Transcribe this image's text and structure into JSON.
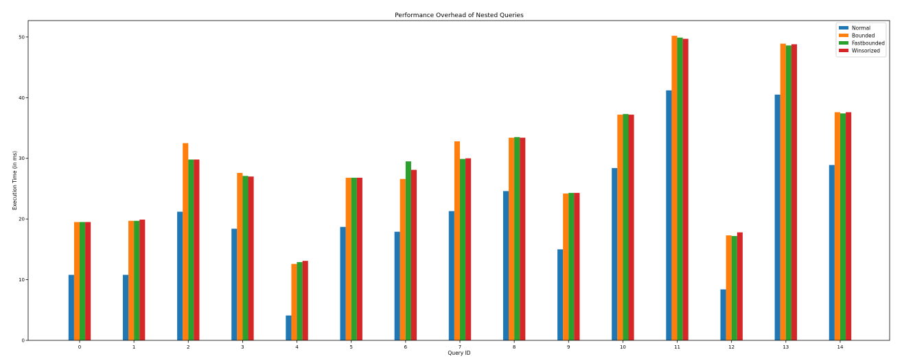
{
  "chart_data": {
    "type": "bar",
    "title": "Performance Overhead of Nested Queries",
    "xlabel": "Query ID",
    "ylabel": "Execution Time (in ms)",
    "categories": [
      "0",
      "1",
      "2",
      "3",
      "4",
      "5",
      "6",
      "7",
      "8",
      "9",
      "10",
      "11",
      "12",
      "13",
      "14"
    ],
    "ylim": [
      0,
      52.7
    ],
    "yticks": [
      0,
      10,
      20,
      30,
      40,
      50
    ],
    "grid": false,
    "legend_position": "top-right",
    "series": [
      {
        "name": "Normal",
        "color": "#1f77b4",
        "values": [
          10.8,
          10.8,
          21.2,
          18.4,
          4.1,
          18.7,
          17.9,
          21.3,
          24.6,
          15.0,
          28.4,
          41.2,
          8.4,
          40.5,
          28.9
        ]
      },
      {
        "name": "Bounded",
        "color": "#ff7f0e",
        "values": [
          19.5,
          19.7,
          32.5,
          27.6,
          12.6,
          26.8,
          26.6,
          32.8,
          33.4,
          24.2,
          37.2,
          50.2,
          17.3,
          48.9,
          37.6
        ]
      },
      {
        "name": "Fastbounded",
        "color": "#2ca02c",
        "values": [
          19.5,
          19.7,
          29.8,
          27.1,
          12.9,
          26.8,
          29.5,
          29.9,
          33.5,
          24.3,
          37.3,
          49.9,
          17.2,
          48.6,
          37.4
        ]
      },
      {
        "name": "Winsorized",
        "color": "#d62728",
        "values": [
          19.5,
          19.9,
          29.8,
          27.0,
          13.1,
          26.8,
          28.1,
          30.0,
          33.4,
          24.3,
          37.2,
          49.7,
          17.8,
          48.8,
          37.6
        ]
      }
    ]
  }
}
